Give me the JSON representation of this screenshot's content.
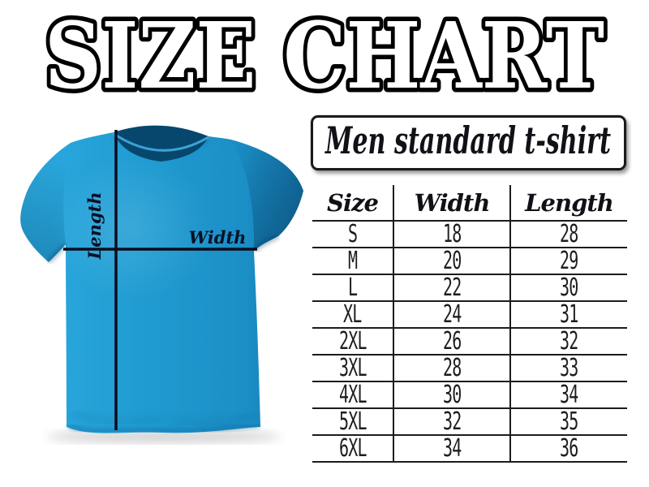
{
  "page": {
    "title": "SIZE CHART",
    "background": "#ffffff"
  },
  "banner": {
    "label": "Men standard t-shirt"
  },
  "illustration": {
    "length_label": "Length",
    "width_label": "Width",
    "shirt_color": "#1f9bd1",
    "shirt_shadow_color": "#0d6c9e",
    "line_color": "#0c0c1c"
  },
  "chart_data": {
    "type": "table",
    "title": "Men standard t-shirt",
    "columns": [
      "Size",
      "Width",
      "Length"
    ],
    "rows": [
      [
        "S",
        "18",
        "28"
      ],
      [
        "M",
        "20",
        "29"
      ],
      [
        "L",
        "22",
        "30"
      ],
      [
        "XL",
        "24",
        "31"
      ],
      [
        "2XL",
        "26",
        "32"
      ],
      [
        "3XL",
        "28",
        "33"
      ],
      [
        "4XL",
        "30",
        "34"
      ],
      [
        "5XL",
        "32",
        "35"
      ],
      [
        "6XL",
        "34",
        "36"
      ]
    ]
  }
}
